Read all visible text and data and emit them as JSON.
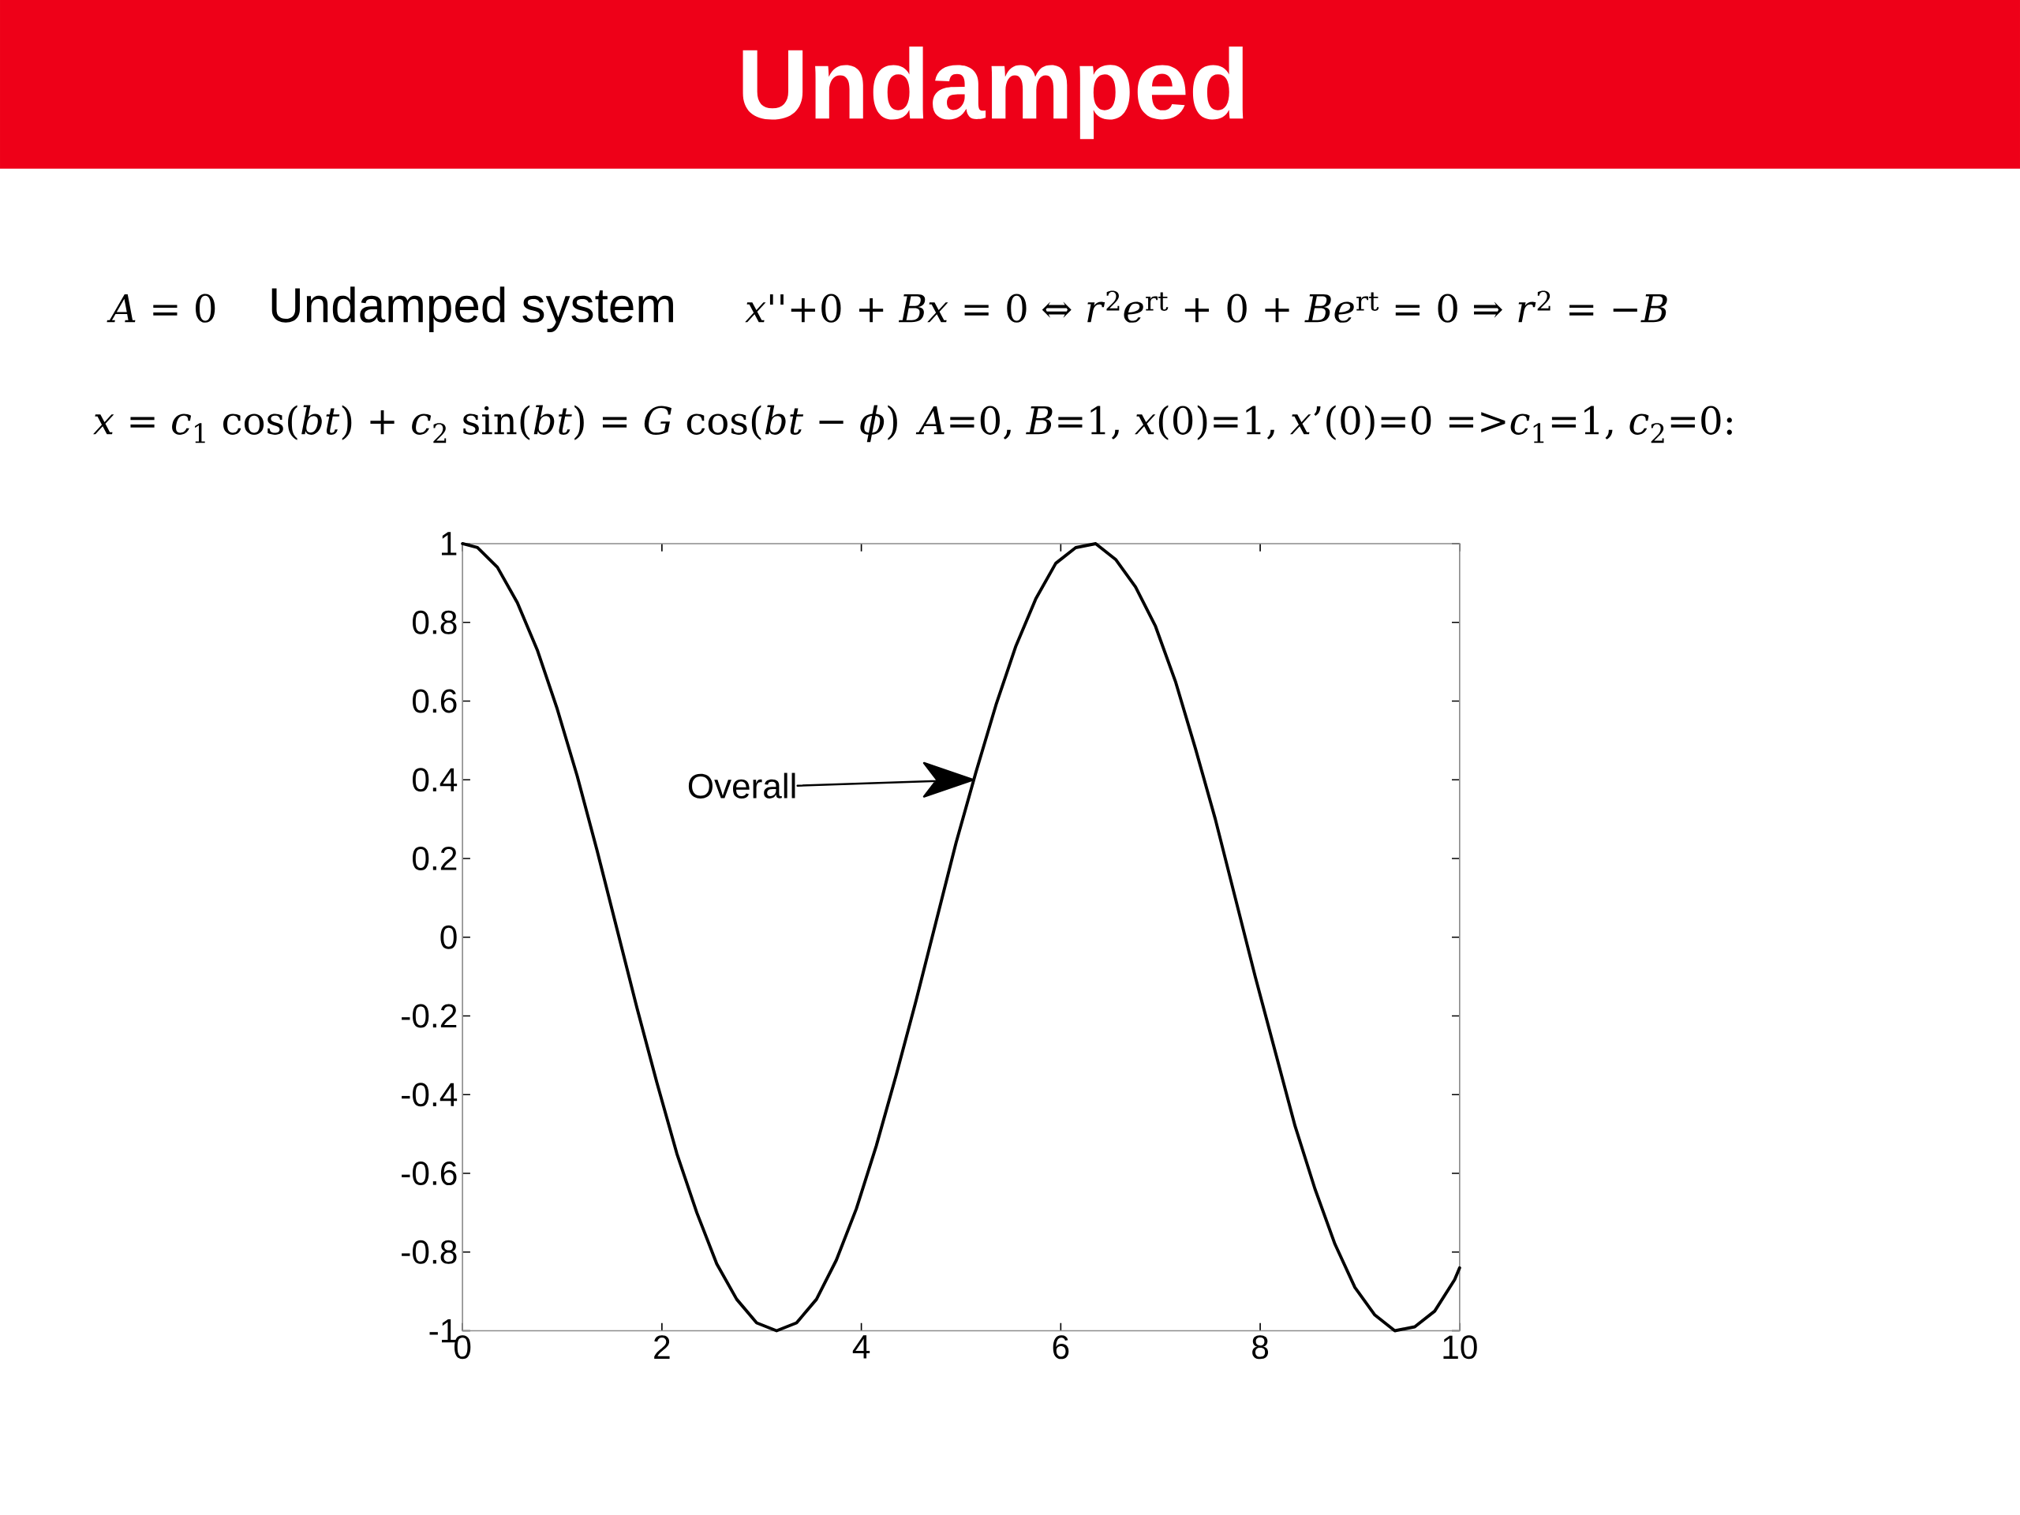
{
  "chart_data": {
    "type": "line",
    "title": "Undamped",
    "annotations": [
      "*A* = 0",
      "Undamped system",
      "*x*''+0 + *Bx* = 0 ⇔ *r*$^{2}$*e*$^{rt}$ + 0 + *Be*$^{rt}$ = 0 ⇒ *r*$^{2}$ = −*B*",
      "*x* = *c*$_{1}$ cos(*bt*) + *c*$_{2}$ sin(*bt*) = *G* cos(*bt* − *ϕ*)",
      "*A*=0, *B*=1, *x*(0)=1, *x*’(0)=0 =>*c*$_{1}$=1, *c*$_{2}$=0:",
      {
        "text": "Overall",
        "x": 5.12,
        "y": 0.4
      }
    ],
    "x": [
      0,
      0.15,
      0.35,
      0.55,
      0.75,
      0.95,
      1.15,
      1.35,
      1.55,
      1.75,
      1.95,
      2.15,
      2.35,
      2.55,
      2.75,
      2.95,
      3.15,
      3.35,
      3.55,
      3.75,
      3.95,
      4.15,
      4.35,
      4.55,
      4.75,
      4.95,
      5.15,
      5.35,
      5.55,
      5.75,
      5.95,
      6.15,
      6.35,
      6.55,
      6.75,
      6.95,
      7.15,
      7.35,
      7.55,
      7.75,
      7.95,
      8.15,
      8.35,
      8.55,
      8.75,
      8.95,
      9.15,
      9.35,
      9.55,
      9.75,
      9.95,
      10
    ],
    "values": [
      1,
      0.99,
      0.94,
      0.85,
      0.73,
      0.58,
      0.41,
      0.22,
      0.02,
      -0.18,
      -0.37,
      -0.55,
      -0.7,
      -0.83,
      -0.92,
      -0.98,
      -1,
      -0.98,
      -0.92,
      -0.82,
      -0.69,
      -0.53,
      -0.35,
      -0.16,
      0.04,
      0.24,
      0.42,
      0.59,
      0.74,
      0.86,
      0.95,
      0.99,
      1,
      0.96,
      0.89,
      0.79,
      0.65,
      0.48,
      0.3,
      0.1,
      -0.1,
      -0.29,
      -0.48,
      -0.64,
      -0.78,
      -0.89,
      -0.96,
      -1,
      -0.99,
      -0.95,
      -0.87,
      -0.84
    ],
    "color": "#000000",
    "line_style": "solid",
    "xlim": [
      0,
      10
    ],
    "ylim": [
      -1,
      1
    ],
    "xticks": [
      0,
      2,
      4,
      6,
      8,
      10
    ],
    "yticks": [
      -1,
      -0.8,
      -0.6,
      -0.4,
      -0.2,
      0,
      0.2,
      0.4,
      0.6,
      0.8,
      1
    ]
  }
}
